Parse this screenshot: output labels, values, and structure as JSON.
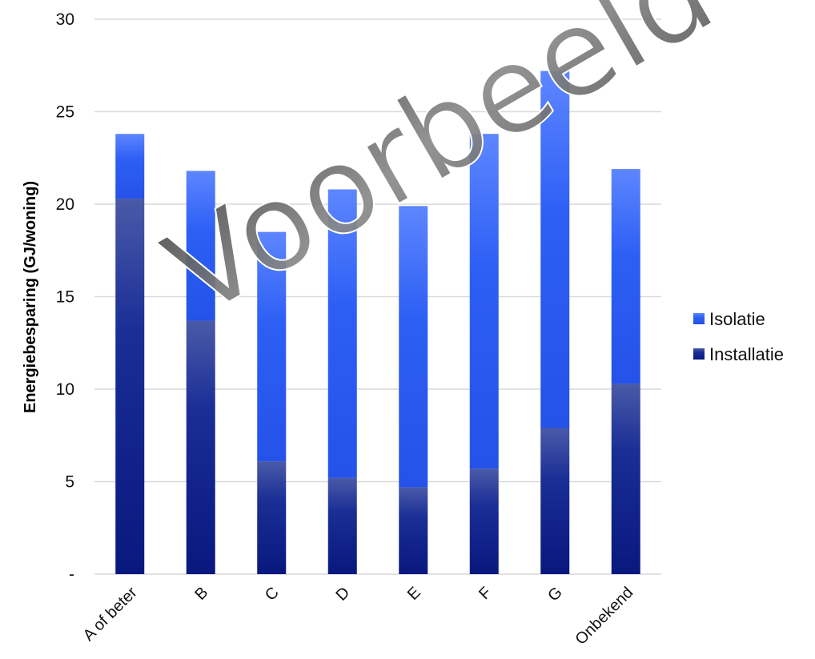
{
  "chart_data": {
    "type": "bar",
    "stacked": true,
    "categories": [
      "A of beter",
      "B",
      "C",
      "D",
      "E",
      "F",
      "G",
      "Onbekend"
    ],
    "series": [
      {
        "name": "Installatie",
        "values": [
          20.3,
          13.7,
          6.1,
          5.2,
          4.7,
          5.7,
          7.9,
          10.3
        ],
        "color": "#0a1f8f"
      },
      {
        "name": "Isolatie",
        "values": [
          3.5,
          8.1,
          12.4,
          15.6,
          15.2,
          18.1,
          19.3,
          11.6
        ],
        "color": "#2f63ff"
      }
    ],
    "ylabel": "Energiebesparing (GJ/woning)",
    "ylim": [
      0,
      30
    ],
    "yticks": [
      {
        "value": 0,
        "label": "-"
      },
      {
        "value": 5,
        "label": "5"
      },
      {
        "value": 10,
        "label": "10"
      },
      {
        "value": 15,
        "label": "15"
      },
      {
        "value": 20,
        "label": "20"
      },
      {
        "value": 25,
        "label": "25"
      },
      {
        "value": 30,
        "label": "30"
      }
    ],
    "grid": true,
    "legend": {
      "position": "right",
      "entries": [
        "Isolatie",
        "Installatie"
      ]
    },
    "watermark": "Voorbeeld"
  }
}
